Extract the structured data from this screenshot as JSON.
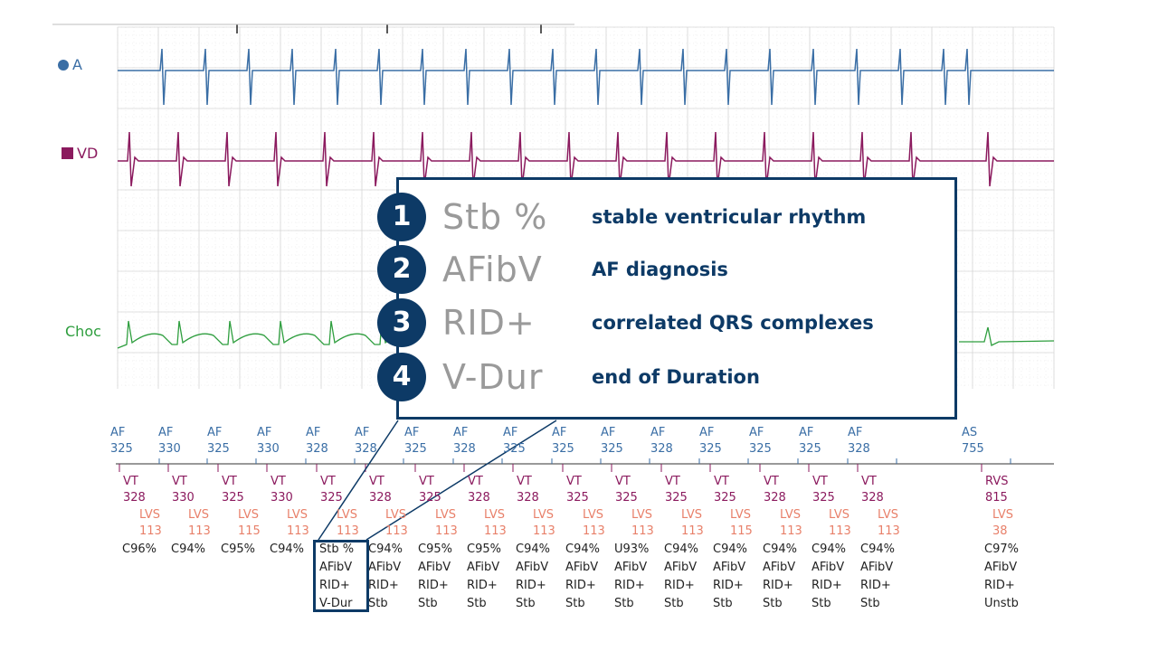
{
  "channels": {
    "a": {
      "label": "A",
      "color": "#3a6ea5"
    },
    "vd": {
      "label": "VD",
      "color": "#8b1a5e"
    },
    "choc": {
      "label": "Choc",
      "color": "#2e9e3e"
    }
  },
  "atrial_markers": [
    {
      "label": "AF",
      "value": "325"
    },
    {
      "label": "AF",
      "value": "330"
    },
    {
      "label": "AF",
      "value": "325"
    },
    {
      "label": "AF",
      "value": "330"
    },
    {
      "label": "AF",
      "value": "328"
    },
    {
      "label": "AF",
      "value": "328"
    },
    {
      "label": "AF",
      "value": "325"
    },
    {
      "label": "AF",
      "value": "328"
    },
    {
      "label": "AF",
      "value": "325"
    },
    {
      "label": "AF",
      "value": "325"
    },
    {
      "label": "AF",
      "value": "325"
    },
    {
      "label": "AF",
      "value": "328"
    },
    {
      "label": "AF",
      "value": "325"
    },
    {
      "label": "AF",
      "value": "325"
    },
    {
      "label": "AF",
      "value": "325"
    },
    {
      "label": "AF",
      "value": "328"
    },
    {
      "label": "AS",
      "value": "755"
    }
  ],
  "ventricular_markers": [
    {
      "label": "VT",
      "value": "328",
      "lvs": "LVS",
      "lvs_value": "113",
      "dx": [
        "C96%"
      ]
    },
    {
      "label": "VT",
      "value": "330",
      "lvs": "LVS",
      "lvs_value": "113",
      "dx": [
        "C94%"
      ]
    },
    {
      "label": "VT",
      "value": "325",
      "lvs": "LVS",
      "lvs_value": "115",
      "dx": [
        "C95%"
      ]
    },
    {
      "label": "VT",
      "value": "330",
      "lvs": "LVS",
      "lvs_value": "113",
      "dx": [
        "C94%"
      ]
    },
    {
      "label": "VT",
      "value": "325",
      "lvs": "LVS",
      "lvs_value": "113",
      "dx": [
        "Stb %",
        "AFibV",
        "RID+",
        "V-Dur"
      ]
    },
    {
      "label": "VT",
      "value": "328",
      "lvs": "LVS",
      "lvs_value": "113",
      "dx": [
        "C94%",
        "AFibV",
        "RID+",
        "Stb"
      ]
    },
    {
      "label": "VT",
      "value": "325",
      "lvs": "LVS",
      "lvs_value": "113",
      "dx": [
        "C95%",
        "AFibV",
        "RID+",
        "Stb"
      ]
    },
    {
      "label": "VT",
      "value": "328",
      "lvs": "LVS",
      "lvs_value": "113",
      "dx": [
        "C95%",
        "AFibV",
        "RID+",
        "Stb"
      ]
    },
    {
      "label": "VT",
      "value": "328",
      "lvs": "LVS",
      "lvs_value": "113",
      "dx": [
        "C94%",
        "AFibV",
        "RID+",
        "Stb"
      ]
    },
    {
      "label": "VT",
      "value": "325",
      "lvs": "LVS",
      "lvs_value": "113",
      "dx": [
        "C94%",
        "AFibV",
        "RID+",
        "Stb"
      ]
    },
    {
      "label": "VT",
      "value": "325",
      "lvs": "LVS",
      "lvs_value": "113",
      "dx": [
        "U93%",
        "AFibV",
        "RID+",
        "Stb"
      ]
    },
    {
      "label": "VT",
      "value": "325",
      "lvs": "LVS",
      "lvs_value": "113",
      "dx": [
        "C94%",
        "AFibV",
        "RID+",
        "Stb"
      ]
    },
    {
      "label": "VT",
      "value": "325",
      "lvs": "LVS",
      "lvs_value": "115",
      "dx": [
        "C94%",
        "AFibV",
        "RID+",
        "Stb"
      ]
    },
    {
      "label": "VT",
      "value": "328",
      "lvs": "LVS",
      "lvs_value": "113",
      "dx": [
        "C94%",
        "AFibV",
        "RID+",
        "Stb"
      ]
    },
    {
      "label": "VT",
      "value": "325",
      "lvs": "LVS",
      "lvs_value": "113",
      "dx": [
        "C94%",
        "AFibV",
        "RID+",
        "Stb"
      ]
    },
    {
      "label": "VT",
      "value": "328",
      "lvs": "LVS",
      "lvs_value": "113",
      "dx": [
        "C94%",
        "AFibV",
        "RID+",
        "Stb"
      ]
    },
    {
      "label": "RVS",
      "value": "815",
      "lvs": "LVS",
      "lvs_value": "38",
      "dx": [
        "C97%",
        "AFibV",
        "RID+",
        "Unstb"
      ]
    }
  ],
  "legend": {
    "items": [
      {
        "number": "1",
        "code": "Stb %",
        "description": "stable ventricular rhythm"
      },
      {
        "number": "2",
        "code": "AFibV",
        "description": "AF diagnosis"
      },
      {
        "number": "3",
        "code": "RID+",
        "description": "correlated QRS complexes"
      },
      {
        "number": "4",
        "code": "V-Dur",
        "description": "end of Duration"
      }
    ]
  },
  "colors": {
    "accent": "#0d3a66",
    "atrial": "#3a6ea5",
    "ventricular": "#8b1a5e",
    "lvs": "#e8806a",
    "shock": "#2e9e3e",
    "grid": "#dcdcdc"
  }
}
